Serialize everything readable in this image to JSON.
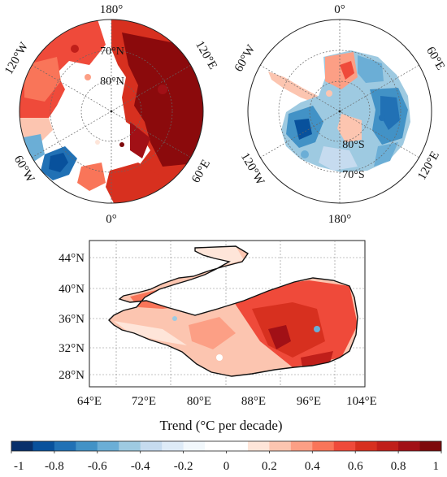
{
  "arctic": {
    "lon_labels": [
      "180°",
      "120°E",
      "60°E",
      "0°",
      "60°W",
      "120°W"
    ],
    "lat_labels": [
      "70°N",
      "80°N"
    ]
  },
  "antarctic": {
    "lon_labels": [
      "0°",
      "60°E",
      "120°E",
      "180°",
      "120°W",
      "60°W"
    ],
    "lat_labels": [
      "80°S",
      "70°S"
    ]
  },
  "tibet": {
    "lat_labels": [
      "44°N",
      "40°N",
      "36°N",
      "32°N",
      "28°N"
    ],
    "lon_labels": [
      "64°E",
      "72°E",
      "80°E",
      "88°E",
      "96°E",
      "104°E"
    ]
  },
  "colorbar": {
    "title": "Trend (°C per decade)",
    "range": [
      -1,
      1
    ],
    "tick_labels": [
      "-1",
      "-0.8",
      "-0.6",
      "-0.4",
      "-0.2",
      "0",
      "0.2",
      "0.4",
      "0.6",
      "0.8",
      "1"
    ],
    "colors": [
      "#08306b",
      "#08519c",
      "#2171b5",
      "#4292c6",
      "#6baed6",
      "#9ecae1",
      "#c6dbef",
      "#deebf7",
      "#f2f8fc",
      "#ffffff",
      "#ffffff",
      "#fee5d9",
      "#fcc5b0",
      "#fc9f85",
      "#f97559",
      "#ef4a3a",
      "#d7301f",
      "#c01f1a",
      "#a11016",
      "#7d0a0c"
    ]
  },
  "theme": {
    "warm": "#d7301f",
    "dark_warm": "#8b0a0c",
    "cool": "#2171b5",
    "pale_cool": "#9ecae1"
  }
}
